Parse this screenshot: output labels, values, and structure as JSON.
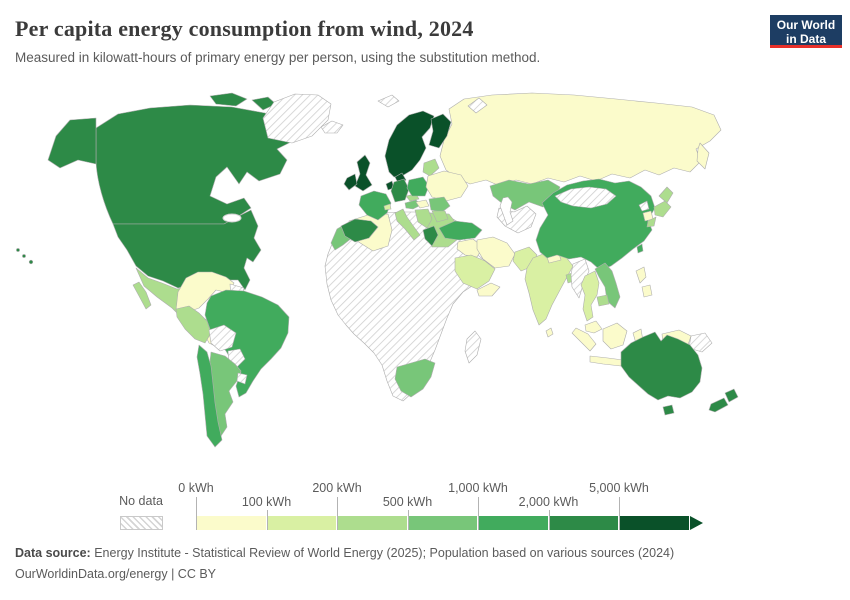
{
  "header": {
    "title": "Per capita energy consumption from wind, 2024",
    "subtitle": "Measured in kilowatt-hours of primary energy per person, using the substitution method.",
    "logo_line1": "Our World",
    "logo_line2": "in Data",
    "logo_bg_color": "#1d3d63",
    "logo_accent_color": "#e8302a"
  },
  "legend": {
    "no_data_label": "No data",
    "unit": "kWh",
    "bins": [
      {
        "label": "0 kWh",
        "color": "#fbfbcb"
      },
      {
        "label": "100 kWh",
        "color": "#d9f0a3"
      },
      {
        "label": "200 kWh",
        "color": "#addd8e"
      },
      {
        "label": "500 kWh",
        "color": "#78c679"
      },
      {
        "label": "1,000 kWh",
        "color": "#41ab5d"
      },
      {
        "label": "2,000 kWh",
        "color": "#2d8a47"
      },
      {
        "label": "5,000 kWh",
        "color": "#0a5129"
      }
    ]
  },
  "footer": {
    "source_label": "Data source:",
    "source_text": " Energy Institute - Statistical Review of World Energy (2025); Population based on various sources (2024)",
    "note": "OurWorldinData.org/energy | CC BY"
  },
  "chart_data": {
    "type": "choropleth",
    "title": "Per capita energy consumption from wind, 2024",
    "unit": "kWh per person",
    "year": 2024,
    "legend_position": "bottom",
    "bin_ranges": {
      "b1": "0–100 kWh",
      "b2": "100–200 kWh",
      "b3": "200–500 kWh",
      "b4": "500–1,000 kWh",
      "b5": "1,000–2,000 kWh",
      "b6": "2,000–5,000 kWh",
      "b7": "5,000+ kWh",
      "nd": "No data"
    },
    "countries": {
      "greenland": "nd",
      "canada": "b6",
      "united-states": "b6",
      "mexico": "b3",
      "central-america": "b1",
      "cuba": "nd",
      "hispaniola": "b1",
      "colombia-venezuela": "b1",
      "guyana-region": "nd",
      "brazil": "b5",
      "peru": "b3",
      "bolivia": "nd",
      "paraguay": "nd",
      "uruguay": "nd",
      "chile": "b5",
      "argentina": "b4",
      "iceland": "nd",
      "svalbard": "nd",
      "norway-sweden": "b7",
      "finland": "b7",
      "denmark": "b7",
      "united-kingdom": "b7",
      "ireland": "b7",
      "netherlands": "b7",
      "germany": "b6",
      "france": "b5",
      "spain-portugal": "b6",
      "italy": "b3",
      "switzerland": "b2",
      "austria": "b4",
      "czechia": "b3",
      "poland": "b5",
      "baltics": "b3",
      "belarus-ukraine": "b1",
      "hungary": "b1",
      "romania": "b4",
      "balkans": "b3",
      "bulgaria": "b3",
      "greece": "b6",
      "russia": "b1",
      "novaya-zemlya": "nd",
      "kazakhstan": "b4",
      "central-asia": "nd",
      "turkey": "b5",
      "syria-iraq": "b1",
      "iran": "b1",
      "saudi-arabia": "b2",
      "yemen-oman": "b1",
      "pakistan": "b2",
      "india": "b2",
      "sri-lanka": "b1",
      "nepal": "b1",
      "bangladesh": "b3",
      "myanmar": "nd",
      "thailand": "b2",
      "vietnam": "b4",
      "cambodia": "b3",
      "china": "b5",
      "mongolia": "nd",
      "north-korea": "nd",
      "south-korea": "b1",
      "japan": "b3",
      "taiwan": "b5",
      "philippines": "b1",
      "malaysia": "b1",
      "indonesia": "b1",
      "papua-new-guinea": "nd",
      "australia": "b6",
      "new-zealand": "b6",
      "africa": "nd",
      "morocco": "b4",
      "algeria": "b1",
      "egypt": "b3",
      "south-africa": "b4",
      "madagascar": "nd"
    }
  }
}
